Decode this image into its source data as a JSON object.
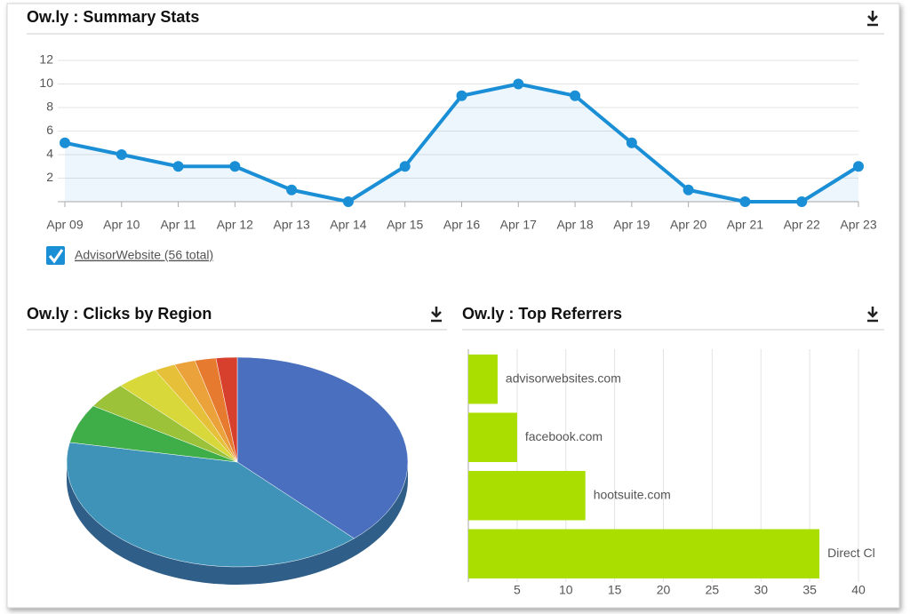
{
  "chart_data": [
    {
      "type": "line",
      "title": "Ow.ly : Summary Stats",
      "categories": [
        "Apr 09",
        "Apr 10",
        "Apr 11",
        "Apr 12",
        "Apr 13",
        "Apr 14",
        "Apr 15",
        "Apr 16",
        "Apr 17",
        "Apr 18",
        "Apr 19",
        "Apr 20",
        "Apr 21",
        "Apr 22",
        "Apr 23"
      ],
      "series": [
        {
          "name": "AdvisorWebsite (56 total)",
          "color": "#1b8fd6",
          "values": [
            5,
            4,
            3,
            3,
            1,
            0,
            3,
            9,
            10,
            9,
            5,
            1,
            0,
            0,
            3
          ]
        }
      ],
      "ylim": [
        0,
        12
      ],
      "yticks": [
        2,
        4,
        6,
        8,
        10,
        12
      ],
      "grid": true
    },
    {
      "type": "pie",
      "title": "Ow.ly : Clicks by Region",
      "values": [
        38,
        40,
        6,
        4,
        4,
        2,
        2,
        2,
        2
      ],
      "colors": [
        "#4a6fbf",
        "#3f93b8",
        "#3fae48",
        "#9cc23a",
        "#d8d83a",
        "#e7c03a",
        "#eba23a",
        "#e67a2e",
        "#d8402e"
      ]
    },
    {
      "type": "hbar",
      "title": "Ow.ly : Top Referrers",
      "categories": [
        "advisorwebsites.com",
        "facebook.com",
        "hootsuite.com",
        "Direct Cl"
      ],
      "values": [
        3,
        5,
        12,
        36
      ],
      "color": "#aadd00",
      "xlim": [
        0,
        40
      ],
      "xticks": [
        5,
        10,
        15,
        20,
        25,
        30,
        35,
        40
      ],
      "grid": true
    }
  ]
}
